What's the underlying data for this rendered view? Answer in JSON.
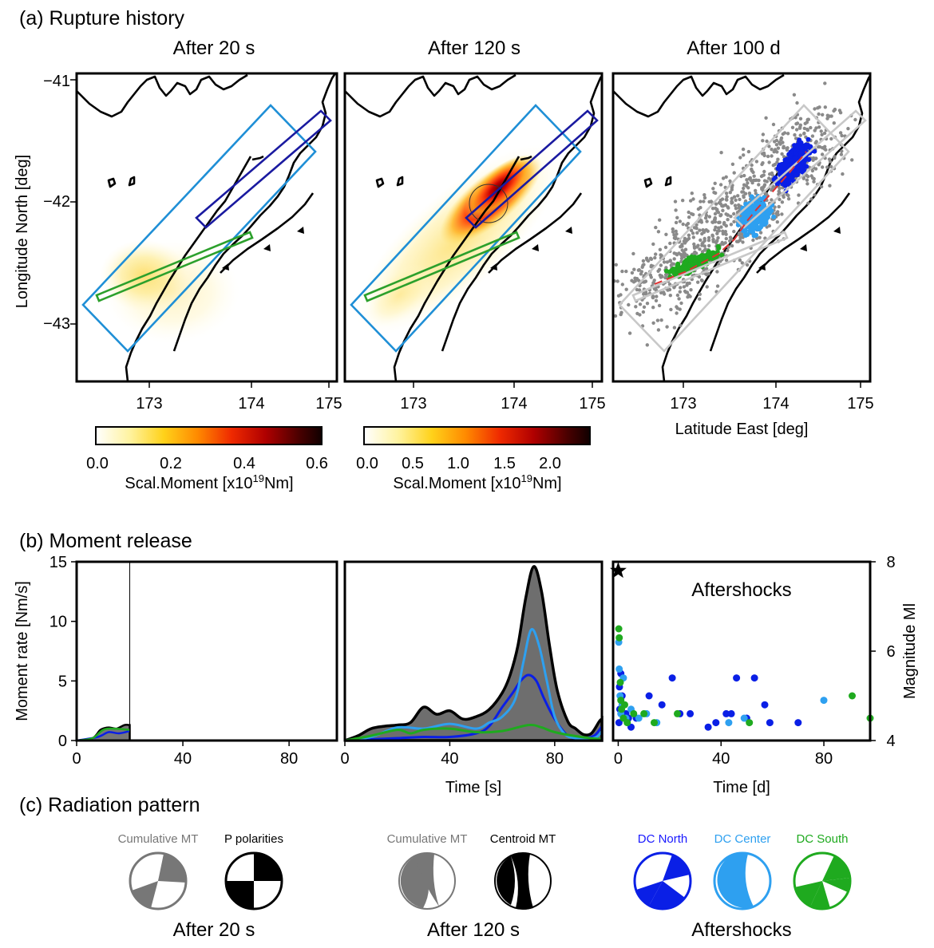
{
  "panels": {
    "a_label": "(a) Rupture history",
    "b_label": "(b) Moment release",
    "c_label": "(c) Radiation pattern"
  },
  "maps": {
    "titles": [
      "After 20 s",
      "After 120 s",
      "After 100 d"
    ],
    "ylabel": "Longitude North [deg]",
    "xlabel": "Latitude East [deg]",
    "x_ticks": [
      "173",
      "174",
      "175"
    ],
    "y_ticks": [
      "−41",
      "−42",
      "−43"
    ],
    "colorbar1": {
      "ticks": [
        "0.0",
        "0.2",
        "0.4",
        "0.6"
      ],
      "range": [
        0,
        0.6
      ]
    },
    "colorbar2": {
      "ticks": [
        "0.0",
        "0.5",
        "1.0",
        "1.5",
        "2.0"
      ],
      "range": [
        0,
        2.4
      ]
    },
    "colorbar_label_main": "Scal.Moment [x10",
    "colorbar_label_exp": "19",
    "colorbar_label_unit": "Nm]",
    "colors": {
      "outer_box": "#1f8fd6",
      "north_segment": "#1a1aa0",
      "south_segment": "#2ca02c",
      "aftershock_gray": "#8a8a8a",
      "fault_red": "#e03030",
      "dc_north": "#0a1fe6",
      "dc_center": "#2ea0f0",
      "dc_south": "#1faa1f"
    }
  },
  "chart_data": [
    {
      "type": "area",
      "panel": "After 20 s",
      "ylabel": "Moment rate [Nm/s]",
      "x_ticks": [
        "0",
        "40",
        "80"
      ],
      "y_ticks": [
        "0",
        "5",
        "10",
        "15"
      ],
      "xlim": [
        0,
        98
      ],
      "ylim": [
        0,
        15
      ],
      "cutoff_time": 20,
      "series": [
        {
          "x": [
            0,
            6,
            9,
            12,
            15,
            18,
            20
          ],
          "values": [
            0,
            0.2,
            0.9,
            1.1,
            1.0,
            1.3,
            1.3
          ]
        }
      ]
    },
    {
      "type": "area",
      "panel": "After 120 s",
      "xlabel": "Time [s]",
      "x_ticks": [
        "0",
        "40",
        "80"
      ],
      "xlim": [
        0,
        98
      ],
      "ylim": [
        0,
        15
      ],
      "series": [
        {
          "x": [
            0,
            5,
            10,
            15,
            20,
            25,
            30,
            35,
            40,
            45,
            50,
            55,
            60,
            63,
            66,
            69,
            72,
            75,
            78,
            81,
            85,
            88,
            91,
            94,
            97,
            98
          ],
          "values": [
            0,
            0.4,
            1.0,
            1.2,
            1.3,
            1.5,
            2.8,
            2.2,
            2.5,
            1.8,
            2.0,
            2.6,
            4.0,
            5.5,
            8.0,
            12.0,
            14.6,
            12.5,
            8.0,
            4.2,
            1.6,
            1.0,
            0.5,
            0.6,
            1.6,
            1.8
          ]
        },
        {
          "name_color": "#0a1fe6",
          "x": [
            0,
            10,
            20,
            30,
            40,
            50,
            55,
            60,
            64,
            67,
            70,
            73,
            76,
            80,
            85,
            90,
            95,
            98
          ],
          "values": [
            0,
            0.1,
            0.2,
            0.3,
            0.3,
            0.6,
            1.2,
            2.8,
            4.0,
            5.0,
            5.5,
            5.0,
            3.5,
            1.8,
            0.4,
            0.2,
            0.4,
            1.2
          ]
        },
        {
          "name_color": "#2ea0f0",
          "x": [
            0,
            10,
            20,
            30,
            40,
            50,
            55,
            60,
            65,
            68,
            71,
            74,
            77,
            80,
            84,
            88,
            92,
            96,
            98
          ],
          "values": [
            0,
            0.3,
            1.1,
            1.0,
            1.4,
            1.0,
            1.5,
            2.0,
            3.5,
            6.5,
            9.3,
            8.0,
            5.0,
            2.0,
            0.5,
            0.2,
            0.1,
            0.3,
            0.8
          ]
        },
        {
          "name_color": "#1faa1f",
          "x": [
            0,
            10,
            20,
            25,
            30,
            40,
            50,
            60,
            70,
            75,
            80,
            90,
            98
          ],
          "values": [
            0,
            0.4,
            0.9,
            0.6,
            0.9,
            1.0,
            0.7,
            0.8,
            1.3,
            1.1,
            0.7,
            0.3,
            0.1
          ]
        }
      ]
    },
    {
      "type": "scatter",
      "panel": "After 100 d",
      "title": "Aftershocks",
      "xlabel": "Time [d]",
      "ylabel": "Magnitude Ml",
      "x_ticks": [
        "0",
        "40",
        "80"
      ],
      "y_ticks": [
        "4",
        "6",
        "8"
      ],
      "xlim": [
        -2,
        98
      ],
      "ylim": [
        4,
        8
      ],
      "mainshock": [
        0,
        7.8
      ],
      "series": [
        {
          "color": "#0a1fe6",
          "points": [
            [
              0.3,
              4.4
            ],
            [
              0.6,
              4.7
            ],
            [
              1,
              5.5
            ],
            [
              1.5,
              5.0
            ],
            [
              2,
              4.8
            ],
            [
              3,
              4.6
            ],
            [
              0.5,
              5.2
            ],
            [
              4,
              4.5
            ],
            [
              5,
              4.3
            ],
            [
              7,
              4.5
            ],
            [
              12,
              5.0
            ],
            [
              17,
              4.8
            ],
            [
              21,
              5.4
            ],
            [
              24,
              4.6
            ],
            [
              28,
              4.6
            ],
            [
              35,
              4.3
            ],
            [
              38,
              4.4
            ],
            [
              42,
              4.6
            ],
            [
              44,
              4.6
            ],
            [
              46,
              5.4
            ],
            [
              50,
              4.5
            ],
            [
              53,
              5.4
            ],
            [
              57,
              4.8
            ],
            [
              59,
              4.4
            ],
            [
              70,
              4.4
            ]
          ]
        },
        {
          "color": "#2ea0f0",
          "points": [
            [
              0.2,
              6.2
            ],
            [
              0.4,
              5.6
            ],
            [
              0.7,
              5.0
            ],
            [
              1,
              4.6
            ],
            [
              1.5,
              4.8
            ],
            [
              2,
              5.4
            ],
            [
              3,
              4.5
            ],
            [
              5,
              4.7
            ],
            [
              8,
              4.5
            ],
            [
              11,
              4.6
            ],
            [
              15,
              4.4
            ],
            [
              43,
              4.4
            ],
            [
              49,
              4.5
            ],
            [
              80,
              4.9
            ]
          ]
        },
        {
          "color": "#1faa1f",
          "points": [
            [
              0.2,
              6.5
            ],
            [
              0.4,
              6.3
            ],
            [
              0.8,
              5.3
            ],
            [
              1,
              4.9
            ],
            [
              1.3,
              4.7
            ],
            [
              2,
              4.5
            ],
            [
              2.5,
              4.8
            ],
            [
              3.5,
              4.4
            ],
            [
              6,
              4.6
            ],
            [
              10,
              4.6
            ],
            [
              14,
              4.4
            ],
            [
              23,
              4.6
            ],
            [
              51,
              4.4
            ],
            [
              91,
              5.0
            ],
            [
              98,
              4.5
            ]
          ]
        }
      ]
    }
  ],
  "beachballs": {
    "groups": [
      "After 20 s",
      "After 120 s",
      "Aftershocks"
    ],
    "labels": [
      "Cumulative MT",
      "P polarities",
      "Cumulative MT",
      "Centroid MT",
      "DC North",
      "DC Center",
      "DC South"
    ]
  }
}
